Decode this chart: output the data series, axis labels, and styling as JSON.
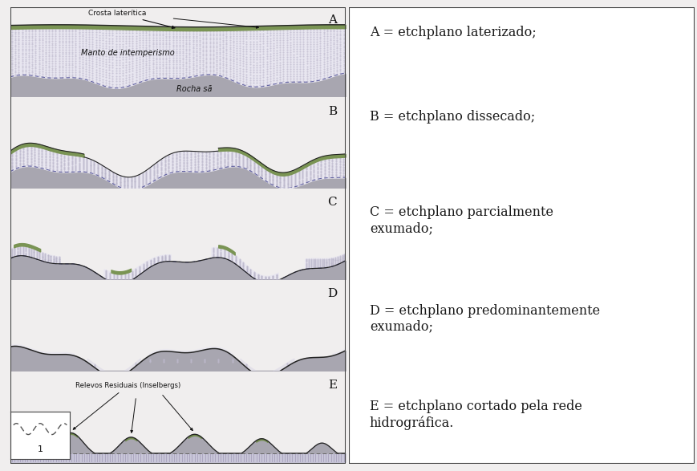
{
  "background_color": "#f0eeee",
  "panel_bg_white": "#f5f4f0",
  "panel_bg_gray": "#b0aeb8",
  "rock_color": "#a8a6b0",
  "rock_dark": "#888690",
  "weathering_color": "#dddbe8",
  "crust_green": "#7a9454",
  "crust_dark_green": "#4a6830",
  "surface_purple": "#8070a0",
  "line_color": "#222222",
  "dashed_color": "#666666",
  "text_color": "#111111",
  "dot_color": "#c0bcd0",
  "right_panel_labels": [
    "A = etchplano laterizado;",
    "B = etchplano dissecado;",
    "C = etchplano parcialmente\nexumado;",
    "D = etchplano predominantemente\nexumado;",
    "E = etchplano cortado pela rede\nhidrográfica."
  ],
  "panel_labels": [
    "A",
    "B",
    "C",
    "D",
    "E"
  ],
  "font_size_right": 11.5,
  "font_size_letter": 11,
  "font_size_annot": 6.5
}
